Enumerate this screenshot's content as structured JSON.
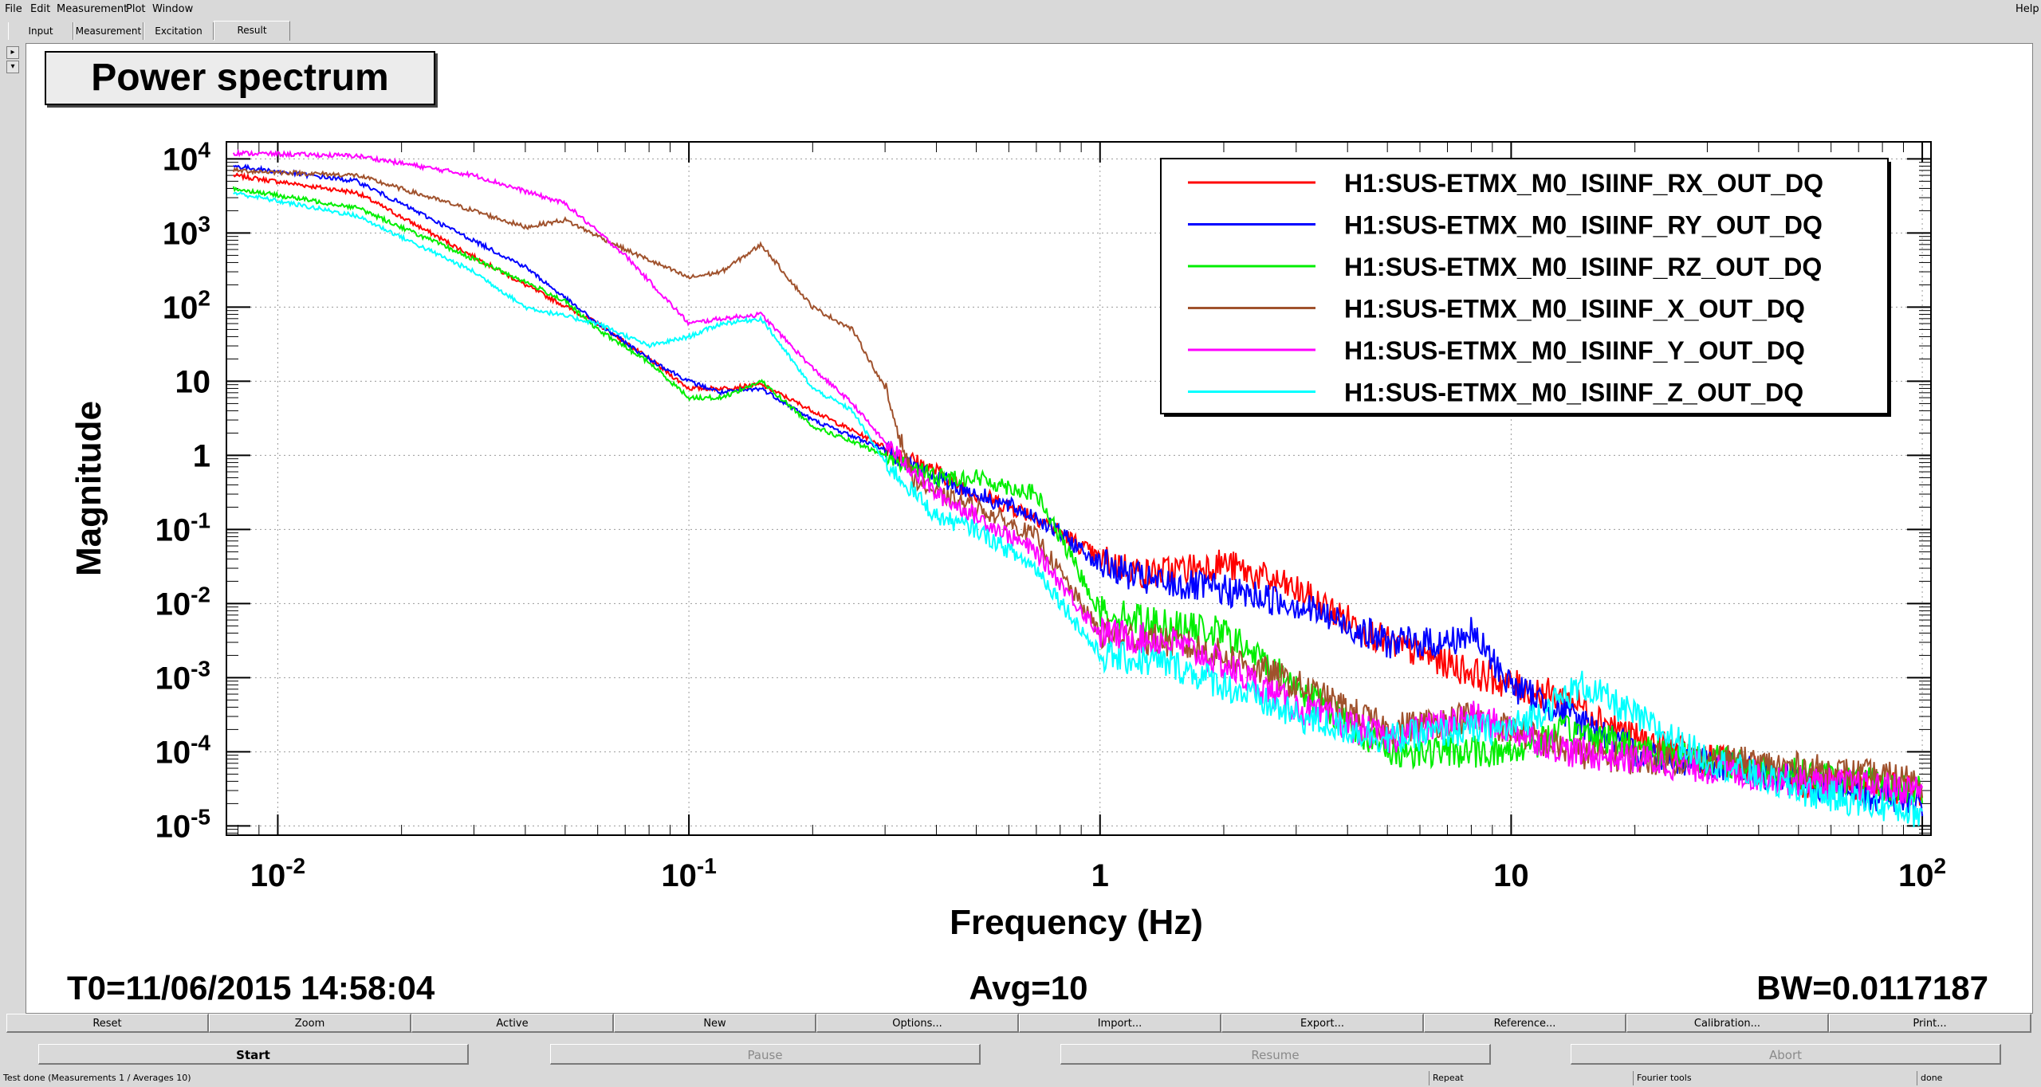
{
  "menu": {
    "items": [
      "File",
      "Edit",
      "Measurement",
      "Plot",
      "Window"
    ],
    "help": "Help"
  },
  "tabs": [
    "Input",
    "Measurement",
    "Excitation",
    "Result"
  ],
  "active_tab": "Result",
  "plot": {
    "title": "Power spectrum",
    "footer_left": "T0=11/06/2015 14:58:04",
    "footer_center": "Avg=10",
    "footer_right": "BW=0.0117187"
  },
  "chart_data": {
    "type": "line",
    "xlabel": "Frequency (Hz)",
    "ylabel": "Magnitude",
    "xscale": "log",
    "yscale": "log",
    "xlim": [
      0.0075,
      105
    ],
    "ylim": [
      7.5e-06,
      17000
    ],
    "xticks": [
      "10-2",
      "10-1",
      "1",
      "10",
      "102"
    ],
    "yticks": [
      "10-5",
      "10-4",
      "10-3",
      "10-2",
      "10-1",
      "1",
      "10",
      "102",
      "103",
      "104"
    ],
    "grid": true,
    "legend_position": "top-right",
    "series": [
      {
        "name": "H1:SUS-ETMX_M0_ISIINF_RX_OUT_DQ",
        "color": "#ff0000",
        "points": [
          [
            0.0078,
            6000
          ],
          [
            0.0156,
            3500
          ],
          [
            0.04,
            200
          ],
          [
            0.06,
            60
          ],
          [
            0.08,
            20
          ],
          [
            0.1,
            8
          ],
          [
            0.12,
            8
          ],
          [
            0.15,
            9
          ],
          [
            0.2,
            4
          ],
          [
            0.3,
            1.3
          ],
          [
            0.4,
            0.6
          ],
          [
            0.5,
            0.3
          ],
          [
            0.7,
            0.15
          ],
          [
            1,
            0.04
          ],
          [
            1.3,
            0.025
          ],
          [
            2,
            0.035
          ],
          [
            3,
            0.015
          ],
          [
            5,
            0.003
          ],
          [
            8,
            0.0012
          ],
          [
            10,
            0.0008
          ],
          [
            14,
            0.0005
          ],
          [
            20,
            0.00015
          ],
          [
            30,
            8e-05
          ],
          [
            50,
            4e-05
          ],
          [
            100,
            3e-05
          ]
        ]
      },
      {
        "name": "H1:SUS-ETMX_M0_ISIINF_RY_OUT_DQ",
        "color": "#0000ff",
        "points": [
          [
            0.0078,
            8000
          ],
          [
            0.0156,
            5000
          ],
          [
            0.04,
            350
          ],
          [
            0.06,
            60
          ],
          [
            0.08,
            20
          ],
          [
            0.1,
            10
          ],
          [
            0.12,
            7
          ],
          [
            0.15,
            8
          ],
          [
            0.2,
            3
          ],
          [
            0.3,
            1.2
          ],
          [
            0.4,
            0.5
          ],
          [
            0.5,
            0.3
          ],
          [
            0.7,
            0.15
          ],
          [
            1,
            0.035
          ],
          [
            1.3,
            0.02
          ],
          [
            2,
            0.015
          ],
          [
            3,
            0.01
          ],
          [
            5,
            0.003
          ],
          [
            7,
            0.003
          ],
          [
            8,
            0.004
          ],
          [
            10,
            0.0008
          ],
          [
            14,
            0.0003
          ],
          [
            20,
            0.0001
          ],
          [
            30,
            7e-05
          ],
          [
            50,
            4e-05
          ],
          [
            100,
            2e-05
          ]
        ]
      },
      {
        "name": "H1:SUS-ETMX_M0_ISIINF_RZ_OUT_DQ",
        "color": "#00ee00",
        "points": [
          [
            0.0078,
            4000
          ],
          [
            0.0156,
            2200
          ],
          [
            0.04,
            220
          ],
          [
            0.05,
            120
          ],
          [
            0.06,
            50
          ],
          [
            0.08,
            18
          ],
          [
            0.1,
            6
          ],
          [
            0.12,
            6
          ],
          [
            0.15,
            10
          ],
          [
            0.2,
            2.5
          ],
          [
            0.3,
            1.0
          ],
          [
            0.4,
            0.5
          ],
          [
            0.5,
            0.5
          ],
          [
            0.7,
            0.3
          ],
          [
            1,
            0.008
          ],
          [
            1.5,
            0.005
          ],
          [
            2,
            0.004
          ],
          [
            3,
            0.0008
          ],
          [
            5,
            0.0001
          ],
          [
            8,
            0.0001
          ],
          [
            10,
            0.0001
          ],
          [
            14,
            0.0002
          ],
          [
            20,
            0.00012
          ],
          [
            30,
            8e-05
          ],
          [
            50,
            5e-05
          ],
          [
            100,
            3e-05
          ]
        ]
      },
      {
        "name": "H1:SUS-ETMX_M0_ISIINF_X_OUT_DQ",
        "color": "#a0522d",
        "points": [
          [
            0.0078,
            7000
          ],
          [
            0.0156,
            6000
          ],
          [
            0.03,
            2000
          ],
          [
            0.04,
            1200
          ],
          [
            0.05,
            1500
          ],
          [
            0.07,
            600
          ],
          [
            0.1,
            250
          ],
          [
            0.12,
            300
          ],
          [
            0.15,
            700
          ],
          [
            0.18,
            200
          ],
          [
            0.2,
            100
          ],
          [
            0.25,
            50
          ],
          [
            0.3,
            8
          ],
          [
            0.35,
            0.5
          ],
          [
            0.4,
            0.3
          ],
          [
            0.5,
            0.2
          ],
          [
            0.7,
            0.08
          ],
          [
            1,
            0.004
          ],
          [
            1.5,
            0.003
          ],
          [
            2,
            0.002
          ],
          [
            3,
            0.0008
          ],
          [
            5,
            0.0002
          ],
          [
            8,
            0.0003
          ],
          [
            10,
            0.0002
          ],
          [
            14,
            0.0001
          ],
          [
            20,
            8e-05
          ],
          [
            30,
            8e-05
          ],
          [
            50,
            6e-05
          ],
          [
            100,
            4e-05
          ]
        ]
      },
      {
        "name": "H1:SUS-ETMX_M0_ISIINF_Y_OUT_DQ",
        "color": "#ff00ff",
        "points": [
          [
            0.0078,
            12000
          ],
          [
            0.0156,
            11000
          ],
          [
            0.03,
            6000
          ],
          [
            0.05,
            2500
          ],
          [
            0.07,
            500
          ],
          [
            0.1,
            60
          ],
          [
            0.12,
            70
          ],
          [
            0.15,
            80
          ],
          [
            0.2,
            15
          ],
          [
            0.25,
            5
          ],
          [
            0.3,
            1.5
          ],
          [
            0.4,
            0.3
          ],
          [
            0.5,
            0.15
          ],
          [
            0.7,
            0.05
          ],
          [
            1,
            0.004
          ],
          [
            1.5,
            0.003
          ],
          [
            2,
            0.0015
          ],
          [
            3,
            0.0004
          ],
          [
            5,
            0.00015
          ],
          [
            8,
            0.0003
          ],
          [
            10,
            0.0002
          ],
          [
            14,
            0.0001
          ],
          [
            20,
            8e-05
          ],
          [
            30,
            6e-05
          ],
          [
            50,
            4e-05
          ],
          [
            100,
            3e-05
          ]
        ]
      },
      {
        "name": "H1:SUS-ETMX_M0_ISIINF_Z_OUT_DQ",
        "color": "#00ffff",
        "points": [
          [
            0.0078,
            3500
          ],
          [
            0.0156,
            1700
          ],
          [
            0.03,
            300
          ],
          [
            0.04,
            100
          ],
          [
            0.06,
            60
          ],
          [
            0.08,
            30
          ],
          [
            0.1,
            40
          ],
          [
            0.12,
            60
          ],
          [
            0.15,
            70
          ],
          [
            0.2,
            8
          ],
          [
            0.25,
            4
          ],
          [
            0.3,
            0.8
          ],
          [
            0.4,
            0.15
          ],
          [
            0.5,
            0.1
          ],
          [
            0.7,
            0.03
          ],
          [
            1,
            0.002
          ],
          [
            1.5,
            0.0015
          ],
          [
            2,
            0.0008
          ],
          [
            3,
            0.0003
          ],
          [
            5,
            0.00015
          ],
          [
            8,
            0.0002
          ],
          [
            10,
            0.0002
          ],
          [
            15,
            0.0008
          ],
          [
            20,
            0.0003
          ],
          [
            30,
            8e-05
          ],
          [
            50,
            3e-05
          ],
          [
            100,
            1.5e-05
          ]
        ]
      }
    ]
  },
  "buttons": [
    "Reset",
    "Zoom",
    "Active",
    "New",
    "Options...",
    "Import...",
    "Export...",
    "Reference...",
    "Calibration...",
    "Print..."
  ],
  "controls": {
    "start": "Start",
    "pause": "Pause",
    "resume": "Resume",
    "abort": "Abort"
  },
  "status": {
    "message": "Test done (Measurements 1 / Averages 10)",
    "repeat": "Repeat",
    "tools": "Fourier tools",
    "state": "done"
  }
}
